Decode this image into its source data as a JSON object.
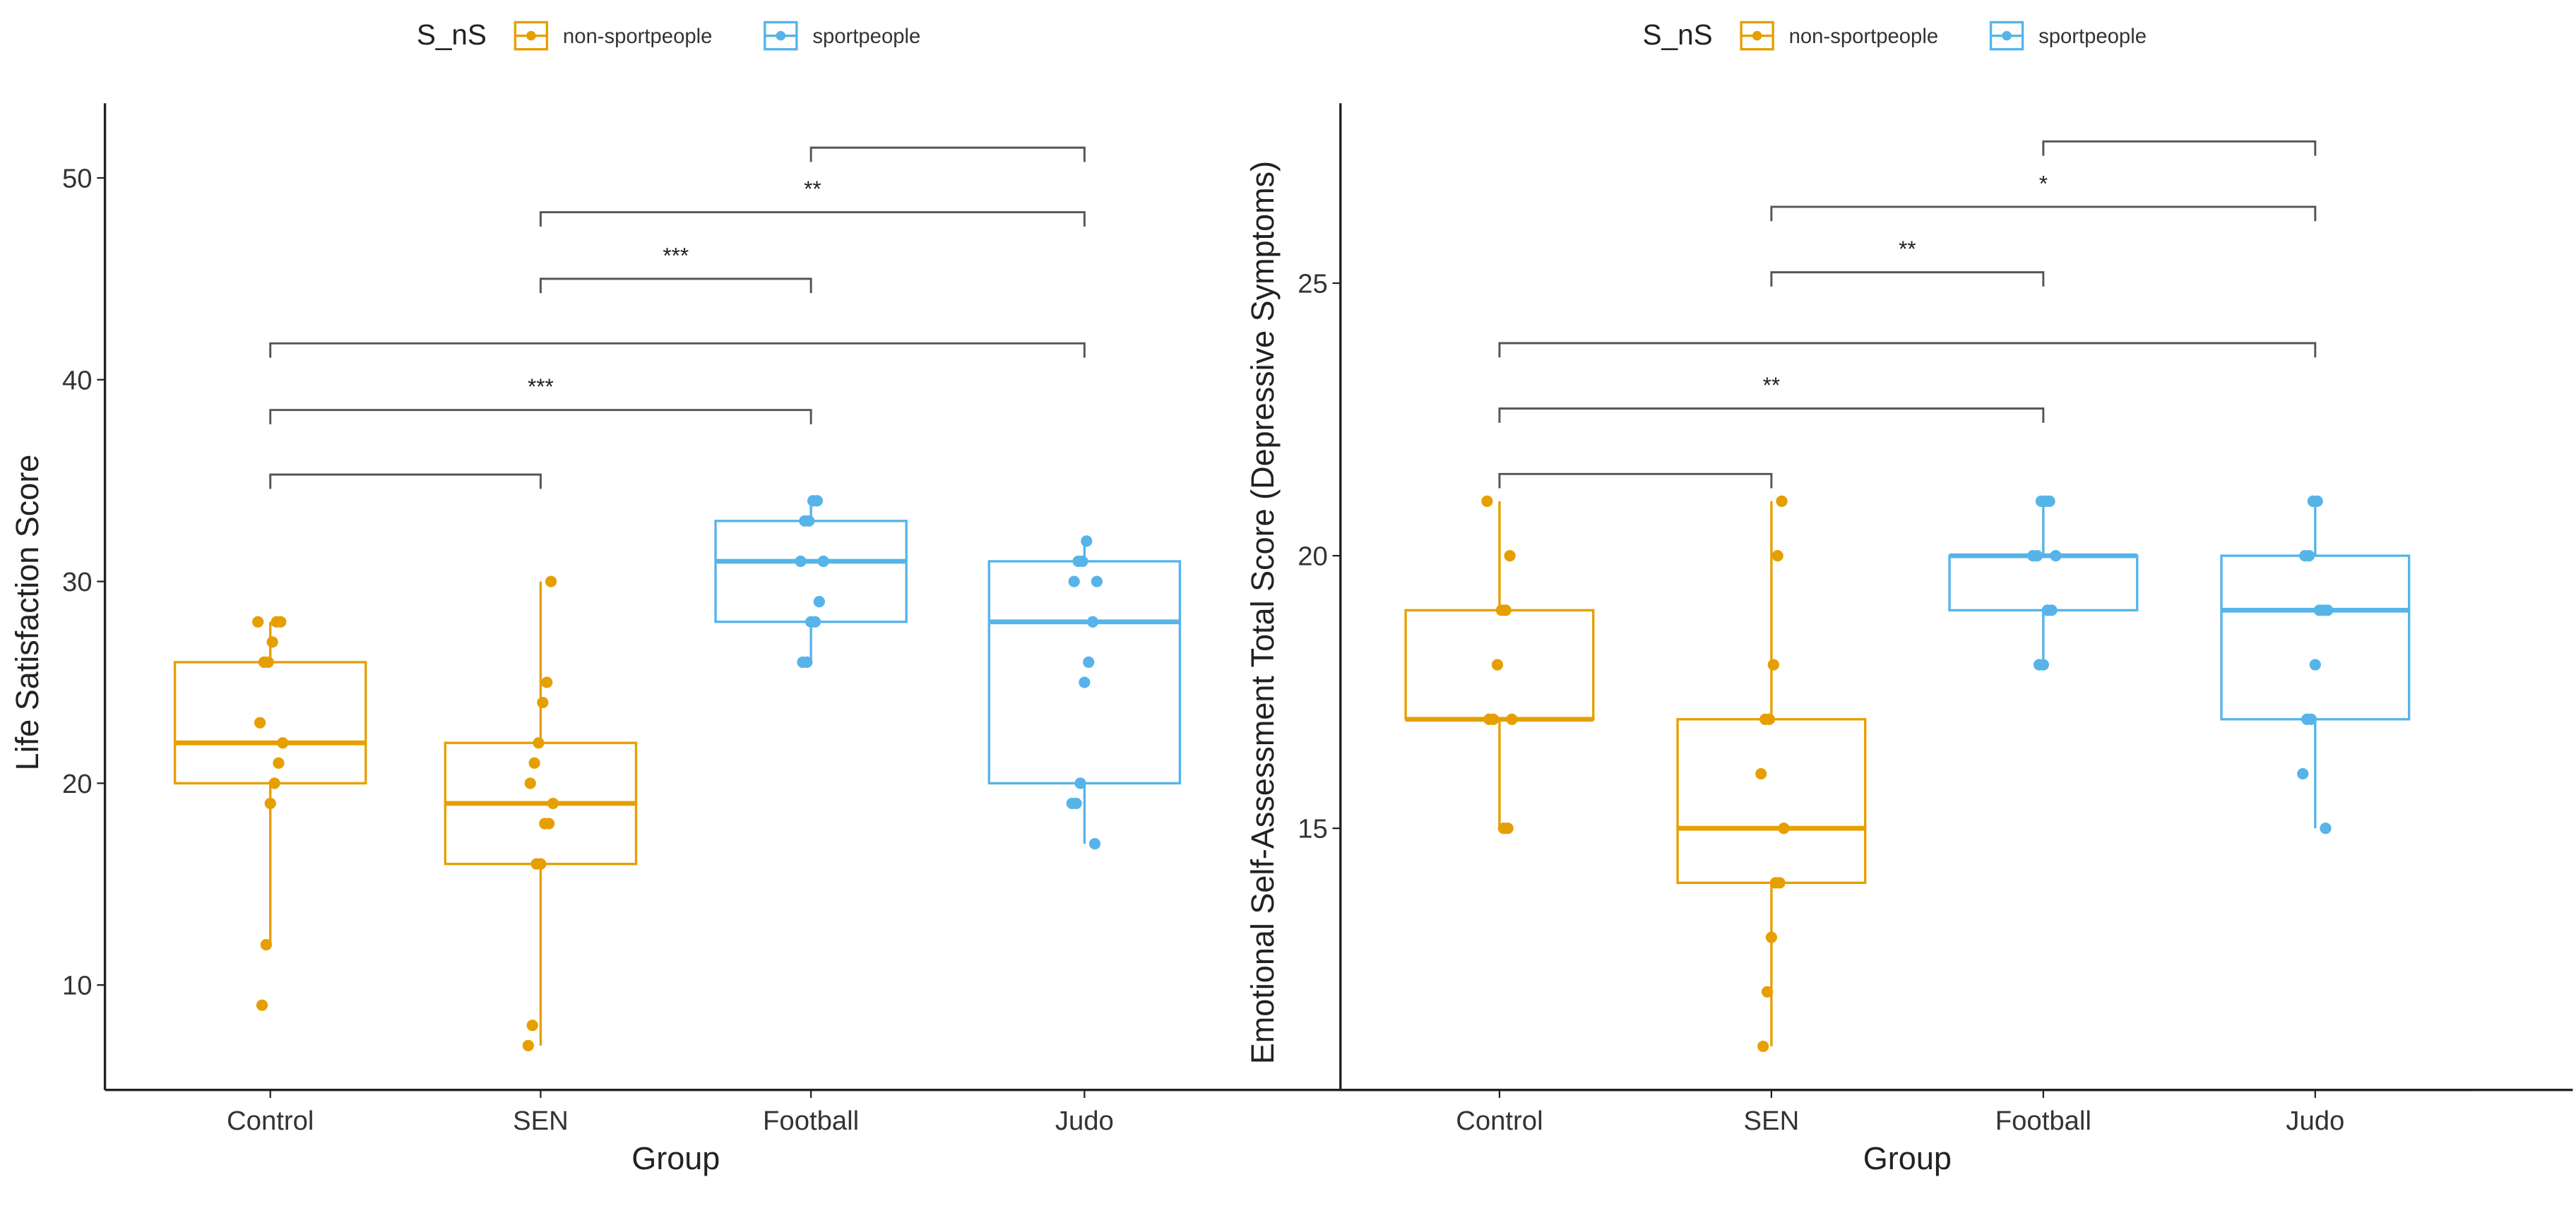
{
  "colors": {
    "non-sportpeople": "#E69F00",
    "sportpeople": "#56B4E9",
    "bracket": "#555555"
  },
  "chart_data": [
    {
      "type": "box",
      "title": "",
      "xlabel": "Group",
      "ylabel": "Life Satisfaction Score",
      "categories": [
        "Control",
        "SEN",
        "Football",
        "Judo"
      ],
      "category_group": [
        "non-sportpeople",
        "non-sportpeople",
        "sportpeople",
        "sportpeople"
      ],
      "legend": {
        "title": "S_nS",
        "entries": [
          "non-sportpeople",
          "sportpeople"
        ],
        "placement": "top"
      },
      "ylim": [
        4.8,
        53.7
      ],
      "yticks": [
        10,
        20,
        30,
        40,
        50
      ],
      "grid": false,
      "boxes": [
        {
          "q1": 20,
          "median": 22,
          "q3": 26,
          "whisker_low": 12,
          "whisker_high": 28
        },
        {
          "q1": 16,
          "median": 19,
          "q3": 22,
          "whisker_low": 7,
          "whisker_high": 30
        },
        {
          "q1": 28,
          "median": 31,
          "q3": 33,
          "whisker_low": 26,
          "whisker_high": 34
        },
        {
          "q1": 20,
          "median": 28,
          "q3": 31,
          "whisker_low": 17,
          "whisker_high": 32
        }
      ],
      "points": [
        [
          28,
          28,
          28,
          27,
          26,
          26,
          23,
          22,
          21,
          20,
          19,
          12,
          9
        ],
        [
          30,
          25,
          24,
          22,
          21,
          20,
          19,
          18,
          18,
          16,
          16,
          8,
          7
        ],
        [
          34,
          34,
          33,
          33,
          31,
          31,
          29,
          28,
          28,
          26,
          26
        ],
        [
          32,
          31,
          31,
          30,
          30,
          28,
          26,
          25,
          20,
          19,
          19,
          17
        ]
      ],
      "comparisons": [
        {
          "from": 0,
          "to": 1,
          "y": 35.3,
          "label": ""
        },
        {
          "from": 0,
          "to": 2,
          "y": 38.5,
          "label": "***"
        },
        {
          "from": 0,
          "to": 3,
          "y": 41.8,
          "label": ""
        },
        {
          "from": 1,
          "to": 2,
          "y": 45.0,
          "label": "***"
        },
        {
          "from": 1,
          "to": 3,
          "y": 48.3,
          "label": "**"
        },
        {
          "from": 2,
          "to": 3,
          "y": 51.5,
          "label": ""
        }
      ]
    },
    {
      "type": "box",
      "title": "",
      "xlabel": "Group",
      "ylabel": "Emotional Self-Assessment Total Score (Depressive Symptoms)",
      "categories": [
        "Control",
        "SEN",
        "Football",
        "Judo"
      ],
      "category_group": [
        "non-sportpeople",
        "non-sportpeople",
        "sportpeople",
        "sportpeople"
      ],
      "legend": {
        "title": "S_nS",
        "entries": [
          "non-sportpeople",
          "sportpeople"
        ],
        "placement": "top"
      },
      "ylim": [
        10.2,
        28.3
      ],
      "yticks": [
        15,
        20,
        25
      ],
      "grid": false,
      "boxes": [
        {
          "q1": 17,
          "median": 17,
          "q3": 19,
          "whisker_low": 15,
          "whisker_high": 21
        },
        {
          "q1": 14,
          "median": 15,
          "q3": 17,
          "whisker_low": 11,
          "whisker_high": 21
        },
        {
          "q1": 19,
          "median": 20,
          "q3": 20,
          "whisker_low": 18,
          "whisker_high": 21
        },
        {
          "q1": 17,
          "median": 19,
          "q3": 20,
          "whisker_low": 15,
          "whisker_high": 21
        }
      ],
      "points": [
        [
          21,
          20,
          19,
          19,
          18,
          17,
          17,
          17,
          15,
          15
        ],
        [
          21,
          20,
          18,
          17,
          17,
          16,
          15,
          14,
          14,
          13,
          12,
          11
        ],
        [
          21,
          21,
          21,
          20,
          20,
          20,
          19,
          19,
          18,
          18
        ],
        [
          21,
          21,
          20,
          20,
          19,
          19,
          19,
          18,
          17,
          17,
          16,
          15
        ]
      ],
      "comparisons": [
        {
          "from": 0,
          "to": 1,
          "y": 21.5,
          "label": ""
        },
        {
          "from": 0,
          "to": 2,
          "y": 22.7,
          "label": "**"
        },
        {
          "from": 0,
          "to": 3,
          "y": 23.9,
          "label": ""
        },
        {
          "from": 1,
          "to": 2,
          "y": 25.2,
          "label": "**"
        },
        {
          "from": 1,
          "to": 3,
          "y": 26.4,
          "label": "*"
        },
        {
          "from": 2,
          "to": 3,
          "y": 27.6,
          "label": ""
        }
      ]
    }
  ]
}
